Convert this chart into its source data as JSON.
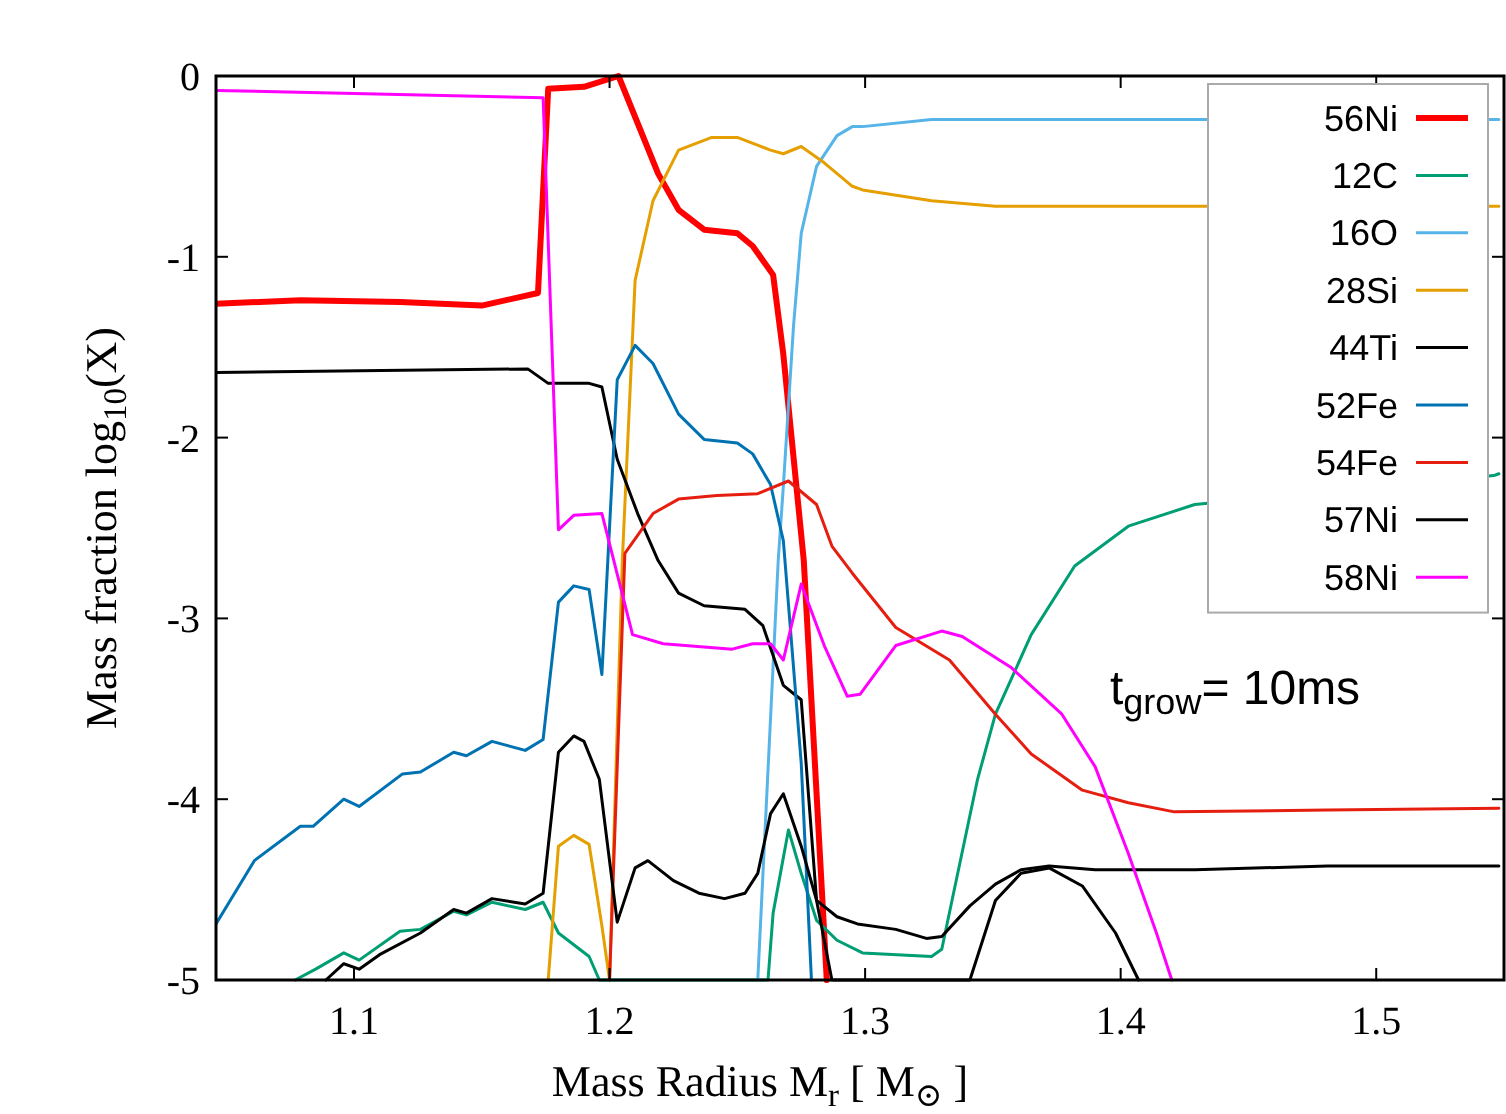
{
  "chart_data": {
    "type": "line",
    "xlabel": "Mass Radius M$_{r}$ [ M$_{⊙}$ ]",
    "ylabel": "Mass fraction log$_{10}$(X)",
    "xlim": [
      1.046,
      1.55
    ],
    "ylim": [
      -5,
      0
    ],
    "xticks": [
      1.1,
      1.2,
      1.3,
      1.4,
      1.5
    ],
    "yticks": [
      0,
      -1,
      -2,
      -3,
      -4,
      -5
    ],
    "grid": false,
    "legend": "top right",
    "annotations": [
      "t$_{grow}$= 10ms"
    ],
    "series": [
      {
        "name": "56Ni",
        "color": "#ff0000",
        "x": [
          1.046,
          1.079,
          1.118,
          1.15,
          1.172,
          1.176,
          1.19,
          1.2035,
          1.219,
          1.227,
          1.237,
          1.25,
          1.256,
          1.264,
          1.268,
          1.276,
          1.285
        ],
        "values": [
          -1.26,
          -1.24,
          -1.25,
          -1.27,
          -1.2,
          -0.07,
          -0.06,
          0,
          -0.54,
          -0.74,
          -0.85,
          -0.87,
          -0.94,
          -1.1,
          -1.54,
          -2.68,
          -5
        ]
      },
      {
        "name": "12C",
        "color": "#009e73",
        "x": [
          1.077,
          1.085,
          1.096,
          1.102,
          1.118,
          1.126,
          1.139,
          1.144,
          1.154,
          1.167,
          1.174,
          1.18,
          1.192,
          1.196,
          1.262,
          1.264,
          1.27,
          1.275,
          1.281,
          1.289,
          1.299,
          1.326,
          1.33,
          1.334,
          1.344,
          1.351,
          1.365,
          1.382,
          1.403,
          1.429,
          1.546,
          1.548
        ],
        "values": [
          -5,
          -4.94,
          -4.85,
          -4.89,
          -4.73,
          -4.72,
          -4.62,
          -4.64,
          -4.57,
          -4.61,
          -4.57,
          -4.74,
          -4.87,
          -5,
          -5,
          -4.63,
          -4.17,
          -4.41,
          -4.67,
          -4.78,
          -4.85,
          -4.87,
          -4.83,
          -4.56,
          -3.89,
          -3.53,
          -3.09,
          -2.71,
          -2.49,
          -2.37,
          -2.21,
          -2.2
        ]
      },
      {
        "name": "16O",
        "color": "#56b4e9",
        "x": [
          1.258,
          1.266,
          1.268,
          1.272,
          1.275,
          1.281,
          1.289,
          1.295,
          1.299,
          1.326,
          1.548
        ],
        "values": [
          -5,
          -2.68,
          -2.27,
          -1.38,
          -0.87,
          -0.5,
          -0.33,
          -0.28,
          -0.28,
          -0.24,
          -0.24
        ]
      },
      {
        "name": "28Si",
        "color": "#e69f00",
        "x": [
          1.176,
          1.18,
          1.186,
          1.192,
          1.197,
          1.2,
          1.205,
          1.21,
          1.217,
          1.227,
          1.24,
          1.25,
          1.263,
          1.268,
          1.275,
          1.284,
          1.295,
          1.299,
          1.326,
          1.351,
          1.429,
          1.548
        ],
        "values": [
          -5,
          -4.26,
          -4.2,
          -4.25,
          -4.7,
          -5,
          -2.68,
          -1.13,
          -0.69,
          -0.41,
          -0.34,
          -0.34,
          -0.41,
          -0.43,
          -0.39,
          -0.48,
          -0.61,
          -0.63,
          -0.69,
          -0.72,
          -0.72,
          -0.72
        ]
      },
      {
        "name": "44Ti",
        "color": "#000000",
        "x": [
          1.046,
          1.168,
          1.176,
          1.192,
          1.197,
          1.203,
          1.211,
          1.219,
          1.227,
          1.237,
          1.253,
          1.26,
          1.268,
          1.275,
          1.281,
          1.287,
          1.341,
          1.351,
          1.361,
          1.372,
          1.385,
          1.398,
          1.407
        ],
        "values": [
          -1.64,
          -1.62,
          -1.7,
          -1.7,
          -1.72,
          -2.12,
          -2.42,
          -2.68,
          -2.86,
          -2.93,
          -2.95,
          -3.04,
          -3.37,
          -3.45,
          -4.56,
          -5,
          -5,
          -4.56,
          -4.41,
          -4.38,
          -4.48,
          -4.74,
          -5
        ]
      },
      {
        "name": "52Fe",
        "color": "#0072b2",
        "x": [
          1.046,
          1.061,
          1.079,
          1.084,
          1.096,
          1.102,
          1.119,
          1.126,
          1.139,
          1.144,
          1.154,
          1.167,
          1.174,
          1.18,
          1.186,
          1.192,
          1.197,
          1.203,
          1.21,
          1.217,
          1.227,
          1.237,
          1.25,
          1.256,
          1.263,
          1.268,
          1.275,
          1.279
        ],
        "values": [
          -4.69,
          -4.34,
          -4.15,
          -4.15,
          -4.0,
          -4.04,
          -3.86,
          -3.85,
          -3.74,
          -3.76,
          -3.68,
          -3.73,
          -3.67,
          -2.91,
          -2.82,
          -2.84,
          -3.31,
          -1.68,
          -1.49,
          -1.59,
          -1.87,
          -2.01,
          -2.03,
          -2.09,
          -2.26,
          -2.57,
          -3.8,
          -5
        ]
      },
      {
        "name": "54Fe",
        "color": "#e51e10",
        "x": [
          1.2,
          1.206,
          1.217,
          1.227,
          1.242,
          1.258,
          1.27,
          1.281,
          1.287,
          1.295,
          1.312,
          1.333,
          1.351,
          1.365,
          1.385,
          1.403,
          1.421,
          1.481,
          1.548
        ],
        "values": [
          -5,
          -2.64,
          -2.42,
          -2.34,
          -2.32,
          -2.31,
          -2.24,
          -2.37,
          -2.6,
          -2.75,
          -3.05,
          -3.23,
          -3.53,
          -3.75,
          -3.95,
          -4.02,
          -4.07,
          -4.06,
          -4.05
        ]
      },
      {
        "name": "57Ni",
        "color": "#000000",
        "x": [
          1.089,
          1.096,
          1.102,
          1.11,
          1.126,
          1.139,
          1.144,
          1.154,
          1.167,
          1.174,
          1.18,
          1.186,
          1.19,
          1.196,
          1.203,
          1.21,
          1.215,
          1.225,
          1.235,
          1.245,
          1.253,
          1.258,
          1.263,
          1.268,
          1.275,
          1.281,
          1.289,
          1.297,
          1.312,
          1.324,
          1.33,
          1.341,
          1.351,
          1.361,
          1.372,
          1.39,
          1.429,
          1.481,
          1.548
        ],
        "values": [
          -5,
          -4.91,
          -4.94,
          -4.86,
          -4.74,
          -4.61,
          -4.63,
          -4.55,
          -4.58,
          -4.52,
          -3.74,
          -3.65,
          -3.68,
          -3.89,
          -4.68,
          -4.38,
          -4.34,
          -4.45,
          -4.52,
          -4.55,
          -4.52,
          -4.41,
          -4.08,
          -3.97,
          -4.26,
          -4.56,
          -4.65,
          -4.69,
          -4.72,
          -4.77,
          -4.76,
          -4.59,
          -4.47,
          -4.39,
          -4.37,
          -4.39,
          -4.39,
          -4.37,
          -4.37
        ]
      },
      {
        "name": "58Ni",
        "color": "#ff00ff",
        "x": [
          1.046,
          1.174,
          1.18,
          1.186,
          1.197,
          1.209,
          1.221,
          1.248,
          1.256,
          1.263,
          1.268,
          1.275,
          1.284,
          1.293,
          1.298,
          1.312,
          1.33,
          1.338,
          1.357,
          1.377,
          1.39,
          1.403,
          1.414,
          1.42
        ],
        "values": [
          -0.08,
          -0.12,
          -2.51,
          -2.43,
          -2.42,
          -3.09,
          -3.14,
          -3.17,
          -3.14,
          -3.14,
          -3.23,
          -2.81,
          -3.15,
          -3.43,
          -3.42,
          -3.15,
          -3.07,
          -3.1,
          -3.27,
          -3.53,
          -3.82,
          -4.3,
          -4.74,
          -5
        ]
      }
    ]
  }
}
